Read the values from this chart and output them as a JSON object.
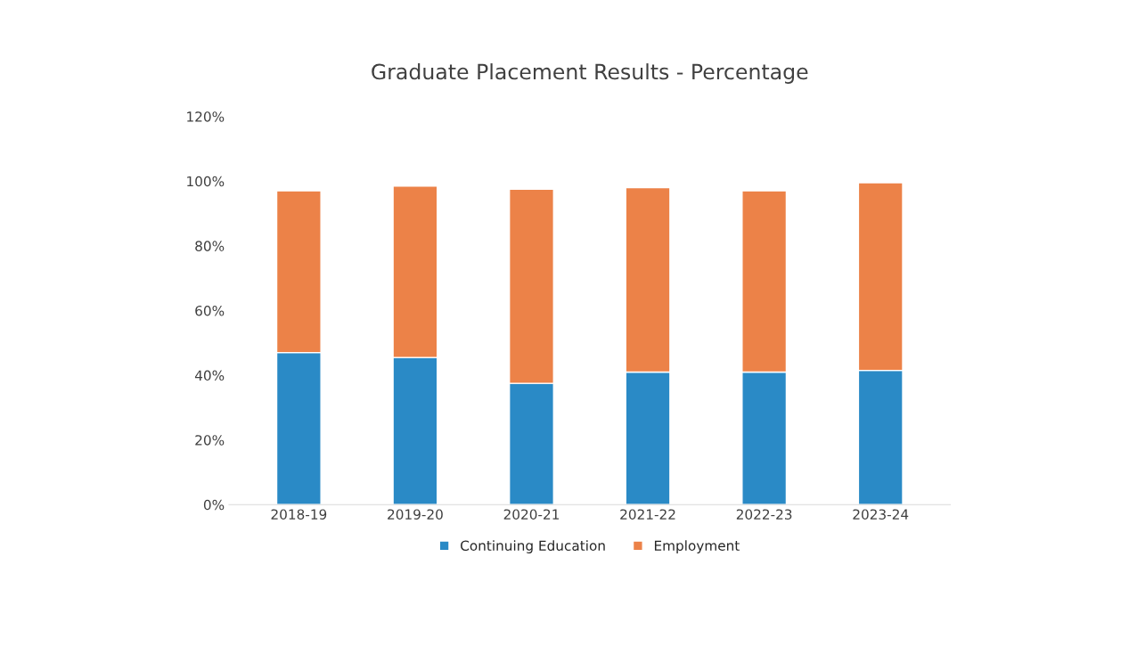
{
  "chart_data": {
    "type": "bar",
    "title": "Graduate Placement Results - Percentage",
    "categories": [
      "2018-19",
      "2019-20",
      "2020-21",
      "2021-22",
      "2022-23",
      "2023-24"
    ],
    "stacked": true,
    "series": [
      {
        "name": "Continuing Education",
        "color": "#2a8ac6",
        "values": [
          47,
          45.5,
          37.5,
          41,
          41,
          41.5
        ]
      },
      {
        "name": "Employment",
        "color": "#ec8248",
        "values": [
          50,
          53,
          60,
          57,
          56,
          58
        ]
      }
    ],
    "ylim": [
      0,
      120
    ],
    "yticks": [
      {
        "value": 0,
        "label": "0%"
      },
      {
        "value": 20,
        "label": "20%"
      },
      {
        "value": 40,
        "label": "40%"
      },
      {
        "value": 60,
        "label": "60%"
      },
      {
        "value": 80,
        "label": "80%"
      },
      {
        "value": 100,
        "label": "100%"
      },
      {
        "value": 120,
        "label": "120%"
      }
    ],
    "legend": "bottom"
  }
}
